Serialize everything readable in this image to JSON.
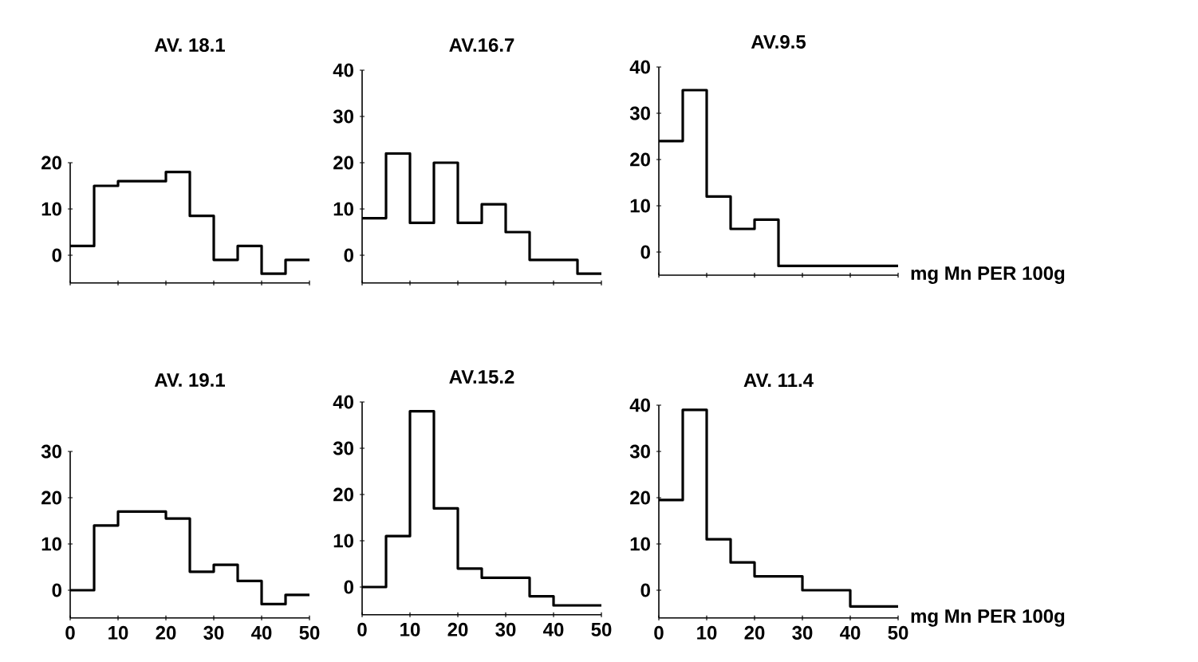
{
  "chart_data": [
    {
      "type": "histogram",
      "title": "AV. 18.1",
      "color": "#000000",
      "bins": [
        0,
        5,
        10,
        15,
        20,
        25,
        30,
        35,
        40,
        45,
        50
      ],
      "values": [
        2,
        15,
        16,
        16,
        18,
        8.5,
        -1,
        2,
        -4,
        -1
      ],
      "xlim": [
        0,
        50
      ],
      "xticks": [
        {
          "value": 0,
          "label": null
        },
        {
          "value": 10,
          "label": null
        },
        {
          "value": 20,
          "label": null
        },
        {
          "value": 30,
          "label": null
        },
        {
          "value": 40,
          "label": null
        },
        {
          "value": 50,
          "label": null
        }
      ],
      "ylim": [
        -6,
        20
      ],
      "yticks": [
        0,
        10,
        20
      ],
      "tick_labels": "y"
    },
    {
      "type": "histogram",
      "title": "AV.16.7",
      "color": "#000000",
      "bins": [
        0,
        5,
        10,
        15,
        20,
        25,
        30,
        35,
        40,
        45,
        50
      ],
      "values": [
        8,
        22,
        7,
        20,
        7,
        11,
        5,
        -1,
        -1,
        -4
      ],
      "xlim": [
        0,
        50
      ],
      "xticks": [
        {
          "value": 0,
          "label": null
        },
        {
          "value": 10,
          "label": null
        },
        {
          "value": 20,
          "label": null
        },
        {
          "value": 30,
          "label": null
        },
        {
          "value": 40,
          "label": null
        },
        {
          "value": 50,
          "label": null
        }
      ],
      "ylim": [
        -6,
        40
      ],
      "yticks": [
        0,
        10,
        20,
        30,
        40
      ],
      "tick_labels": "y"
    },
    {
      "type": "histogram",
      "title": "AV.9.5",
      "color": "#000000",
      "bins": [
        0,
        5,
        10,
        15,
        20,
        25,
        30,
        35,
        40,
        45,
        50
      ],
      "values": [
        24,
        35,
        12,
        5,
        7,
        -3,
        -3,
        -3,
        -3,
        -3
      ],
      "xlim": [
        0,
        50
      ],
      "xticks": [
        {
          "value": 0,
          "label": null
        },
        {
          "value": 10,
          "label": null
        },
        {
          "value": 20,
          "label": null
        },
        {
          "value": 30,
          "label": null
        },
        {
          "value": 40,
          "label": null
        },
        {
          "value": 50,
          "label": null
        }
      ],
      "ylim": [
        -5,
        40
      ],
      "yticks": [
        0,
        10,
        20,
        30,
        40
      ],
      "xlabel": "mg Mn PER 100g",
      "tick_labels": "y"
    },
    {
      "type": "histogram",
      "title": "AV. 19.1",
      "color": "#000000",
      "bins": [
        0,
        5,
        10,
        15,
        20,
        25,
        30,
        35,
        40,
        45,
        50
      ],
      "values": [
        0,
        14,
        17,
        17,
        15.5,
        4,
        5.5,
        2,
        -3,
        -1
      ],
      "xlim": [
        0,
        50
      ],
      "ylim": [
        -6,
        30
      ],
      "yticks": [
        0,
        10,
        20,
        30
      ],
      "xticks": [
        0,
        10,
        20,
        30,
        40,
        50
      ]
    },
    {
      "type": "histogram",
      "title": "AV.15.2",
      "color": "#000000",
      "bins": [
        0,
        5,
        10,
        15,
        20,
        25,
        30,
        35,
        40,
        45,
        50
      ],
      "values": [
        0,
        11,
        38,
        17,
        4,
        2,
        2,
        -2,
        -4,
        -4
      ],
      "xlim": [
        0,
        50
      ],
      "ylim": [
        -6,
        40
      ],
      "yticks": [
        0,
        10,
        20,
        30,
        40
      ],
      "xticks": [
        0,
        10,
        20,
        30,
        40,
        50
      ]
    },
    {
      "type": "histogram",
      "title": "AV. 11.4",
      "color": "#000000",
      "bins": [
        0,
        5,
        10,
        15,
        20,
        25,
        30,
        35,
        40,
        45,
        50
      ],
      "values": [
        19.5,
        39,
        11,
        6,
        3,
        3,
        0,
        0,
        -3.5,
        -3.5
      ],
      "xlim": [
        0,
        50
      ],
      "ylim": [
        -6,
        40
      ],
      "yticks": [
        0,
        10,
        20,
        30,
        40
      ],
      "xticks": [
        0,
        10,
        20,
        30,
        40,
        50
      ],
      "xlabel": "mg Mn PER 100g"
    }
  ]
}
